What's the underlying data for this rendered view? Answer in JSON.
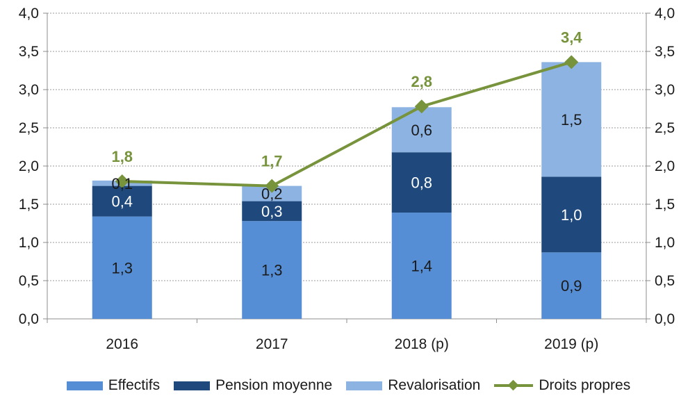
{
  "chart_data": {
    "type": "bar",
    "stacked": true,
    "categories": [
      "2016",
      "2017",
      "2018 (p)",
      "2019 (p)"
    ],
    "series": [
      {
        "name": "Effectifs",
        "kind": "bar",
        "color": "#558ed5",
        "label_color": "#1a1a1a",
        "values": [
          1.34,
          1.28,
          1.39,
          0.87
        ],
        "labels": [
          "1,3",
          "1,3",
          "1,4",
          "0,9"
        ]
      },
      {
        "name": "Pension moyenne",
        "kind": "bar",
        "color": "#1f497d",
        "label_color": "#ffffff",
        "values": [
          0.4,
          0.26,
          0.79,
          0.99
        ],
        "labels": [
          "0,4",
          "0,3",
          "0,8",
          "1,0"
        ]
      },
      {
        "name": "Revalorisation",
        "kind": "bar",
        "color": "#8db3e2",
        "label_color": "#1a1a1a",
        "values": [
          0.07,
          0.2,
          0.59,
          1.5
        ],
        "labels": [
          "0,1",
          "0,2",
          "0,6",
          "1,5"
        ]
      },
      {
        "name": "Droits propres",
        "kind": "line",
        "color": "#77933c",
        "label_color": "#77933c",
        "values": [
          1.8,
          1.74,
          2.78,
          3.36
        ],
        "labels": [
          "1,8",
          "1,7",
          "2,8",
          "3,4"
        ]
      }
    ],
    "ylim": [
      0,
      4
    ],
    "yticks": [
      "0,0",
      "0,5",
      "1,0",
      "1,5",
      "2,0",
      "2,5",
      "3,0",
      "3,5",
      "4,0"
    ],
    "secondary_ylim": [
      0,
      4
    ],
    "secondary_yticks": [
      "0,0",
      "0,5",
      "1,0",
      "1,5",
      "2,0",
      "2,5",
      "3,0",
      "3,5",
      "4,0"
    ],
    "title": "",
    "xlabel": "",
    "ylabel": "",
    "grid": true,
    "legend_position": "bottom"
  }
}
